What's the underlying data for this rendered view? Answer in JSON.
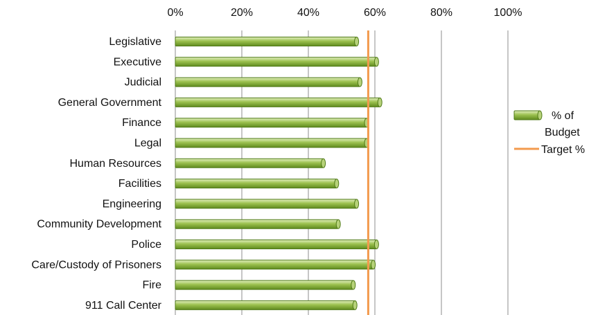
{
  "chart_data": {
    "type": "bar",
    "orientation": "horizontal",
    "title": "",
    "xlabel": "",
    "ylabel": "",
    "xlim": [
      0,
      100
    ],
    "x_ticks": [
      "0%",
      "20%",
      "40%",
      "60%",
      "80%",
      "100%"
    ],
    "x_axis_position": "top",
    "grid": true,
    "legend_position": "right",
    "categories": [
      "Legislative",
      "Executive",
      "Judicial",
      "General Government",
      "Finance",
      "Legal",
      "Human Resources",
      "Facilities",
      "Engineering",
      "Community Development",
      "Police",
      "Care/Custody of Prisoners",
      "Fire",
      "911 Call Center"
    ],
    "series": [
      {
        "name": "% of Budget",
        "color": "#8db23d",
        "values": [
          54.5,
          60.5,
          55.5,
          61.5,
          57.5,
          57.5,
          44.5,
          48.5,
          54.5,
          49,
          60.5,
          59.5,
          53.5,
          54
        ]
      }
    ],
    "target_line": {
      "name": "Target %",
      "value": 58,
      "color": "#f39a4d"
    },
    "legend": [
      {
        "label_lines": [
          "% of",
          "Budget"
        ],
        "icon": "green-bar-swatch"
      },
      {
        "label_lines": [
          "Target %"
        ],
        "icon": "orange-line-swatch"
      }
    ]
  }
}
